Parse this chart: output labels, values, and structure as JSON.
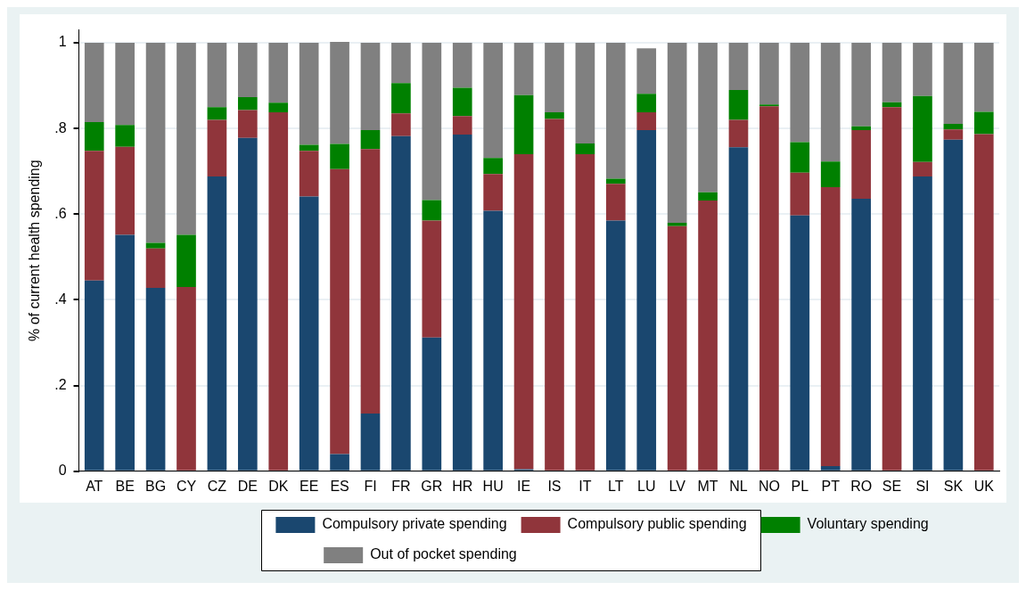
{
  "chart_data": {
    "type": "bar",
    "stacked": true,
    "ylabel": "% of current health spending",
    "categories": [
      "AT",
      "BE",
      "BG",
      "CY",
      "CZ",
      "DE",
      "DK",
      "EE",
      "ES",
      "FI",
      "FR",
      "GR",
      "HR",
      "HU",
      "IE",
      "IS",
      "IT",
      "LT",
      "LU",
      "LV",
      "MT",
      "NL",
      "NO",
      "PL",
      "PT",
      "RO",
      "SE",
      "SI",
      "SK",
      "UK"
    ],
    "series": [
      {
        "name": "Compulsory private spending",
        "color": "#1a476f",
        "values": [
          0.445,
          0.552,
          0.428,
          0,
          0.688,
          0.778,
          0,
          0.641,
          0.04,
          0.135,
          0.782,
          0.312,
          0.786,
          0.608,
          0.005,
          0,
          0,
          0.585,
          0.796,
          0,
          0,
          0.756,
          0,
          0.597,
          0.012,
          0.636,
          0,
          0.688,
          0.774,
          0
        ]
      },
      {
        "name": "Compulsory public spending",
        "color": "#90353b",
        "values": [
          0.303,
          0.205,
          0.092,
          0.43,
          0.132,
          0.065,
          0.838,
          0.107,
          0.665,
          0.617,
          0.053,
          0.273,
          0.043,
          0.086,
          0.735,
          0.822,
          0.74,
          0.086,
          0.042,
          0.572,
          0.632,
          0.064,
          0.852,
          0.1,
          0.651,
          0.16,
          0.85,
          0.034,
          0.024,
          0.787
        ]
      },
      {
        "name": "Voluntary spending",
        "color": "#008000",
        "values": [
          0.067,
          0.051,
          0.013,
          0.122,
          0.03,
          0.03,
          0.022,
          0.014,
          0.059,
          0.044,
          0.071,
          0.048,
          0.066,
          0.037,
          0.138,
          0.016,
          0.025,
          0.012,
          0.043,
          0.008,
          0.019,
          0.07,
          0.004,
          0.071,
          0.06,
          0.009,
          0.011,
          0.154,
          0.013,
          0.052
        ]
      },
      {
        "name": "Out of pocket spending",
        "color": "#808080",
        "values": [
          0.185,
          0.192,
          0.467,
          0.448,
          0.15,
          0.127,
          0.14,
          0.238,
          0.238,
          0.204,
          0.094,
          0.367,
          0.105,
          0.269,
          0.122,
          0.162,
          0.235,
          0.317,
          0.106,
          0.42,
          0.349,
          0.11,
          0.144,
          0.232,
          0.277,
          0.195,
          0.139,
          0.124,
          0.189,
          0.161
        ]
      }
    ],
    "ylim": [
      0,
      1.03
    ],
    "yticks": [
      {
        "value": 0,
        "label": "0"
      },
      {
        "value": 0.2,
        "label": ".2"
      },
      {
        "value": 0.4,
        "label": ".4"
      },
      {
        "value": 0.6,
        "label": ".6"
      },
      {
        "value": 0.8,
        "label": ".8"
      },
      {
        "value": 1,
        "label": "1"
      }
    ],
    "grid": "y",
    "legend": "bottom"
  }
}
